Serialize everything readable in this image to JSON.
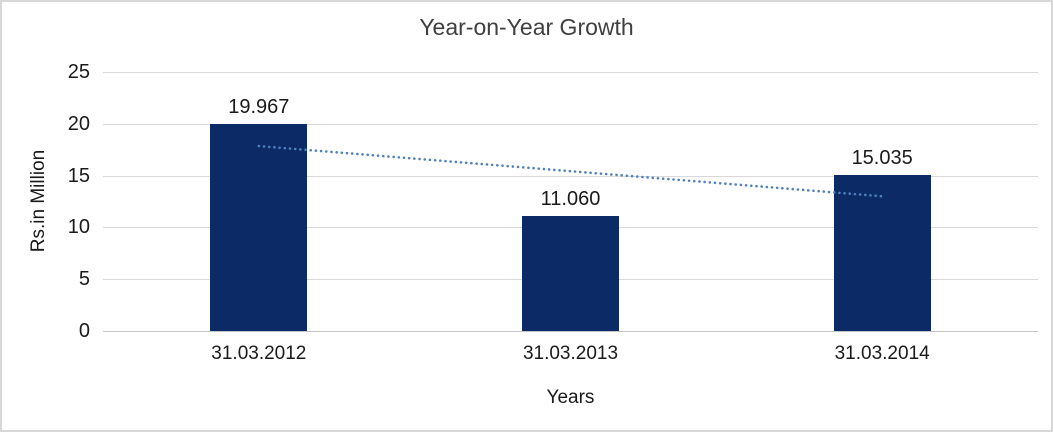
{
  "chart_data": {
    "type": "bar",
    "title": "Year-on-Year Growth",
    "xlabel": "Years",
    "ylabel": "Rs.in Million",
    "categories": [
      "31.03.2012",
      "31.03.2013",
      "31.03.2014"
    ],
    "values": [
      19.967,
      11.06,
      15.035
    ],
    "data_labels": [
      "19.967",
      "11.060",
      "15.035"
    ],
    "ylim": [
      0,
      25
    ],
    "yticks": [
      0,
      5,
      10,
      15,
      20,
      25
    ],
    "grid": true,
    "legend_position": "none",
    "trendline": {
      "type": "linear",
      "style": "dotted",
      "start_value": 17.85,
      "end_value": 13.0
    }
  },
  "colors": {
    "bar": "#0B2A66",
    "trendline": "#4E81BD",
    "gridline": "#D9D9D9",
    "axis_line": "#C6C6C6",
    "tick_text": "#1A1A1A",
    "title_text": "#3F3F3F",
    "frame_border": "#D8D8D8",
    "background": "#FFFFFF"
  }
}
